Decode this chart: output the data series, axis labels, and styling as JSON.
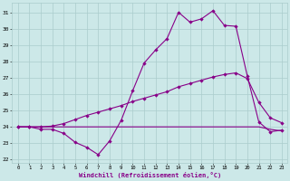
{
  "bg_color": "#cce8e8",
  "line_color": "#880088",
  "grid_color": "#aacccc",
  "xlabel": "Windchill (Refroidissement éolien,°C)",
  "yticks": [
    22,
    23,
    24,
    25,
    26,
    27,
    28,
    29,
    30,
    31
  ],
  "xticks": [
    0,
    1,
    2,
    3,
    4,
    5,
    6,
    7,
    8,
    9,
    10,
    11,
    12,
    13,
    14,
    15,
    16,
    17,
    18,
    19,
    20,
    21,
    22,
    23
  ],
  "s1_x": [
    0,
    1,
    2,
    3,
    4,
    5,
    6,
    7,
    8,
    9,
    10,
    11,
    12,
    13,
    14,
    15,
    16,
    17,
    18,
    19,
    20,
    21,
    22,
    23
  ],
  "s1_y": [
    24.0,
    24.0,
    23.85,
    23.85,
    23.6,
    23.05,
    22.75,
    22.3,
    23.15,
    24.4,
    26.2,
    27.9,
    28.7,
    29.4,
    31.0,
    30.4,
    30.6,
    31.1,
    30.2,
    30.15,
    27.1,
    24.3,
    23.7,
    23.8
  ],
  "s2_x": [
    0,
    1,
    2,
    3,
    4,
    5,
    6,
    7,
    8,
    9,
    10,
    11,
    12,
    13,
    14,
    15,
    16,
    17,
    18,
    19,
    20,
    21,
    22,
    23
  ],
  "s2_y": [
    24.0,
    24.0,
    24.0,
    24.05,
    24.2,
    24.45,
    24.7,
    24.9,
    25.1,
    25.3,
    25.55,
    25.75,
    25.95,
    26.15,
    26.45,
    26.65,
    26.85,
    27.05,
    27.2,
    27.3,
    26.95,
    25.5,
    24.55,
    24.25
  ],
  "s3_x": [
    0,
    19,
    20,
    21,
    22,
    23
  ],
  "s3_y": [
    24.0,
    24.0,
    24.0,
    24.0,
    23.85,
    23.75
  ],
  "xlim": [
    -0.5,
    23.5
  ],
  "ylim": [
    21.8,
    31.6
  ]
}
